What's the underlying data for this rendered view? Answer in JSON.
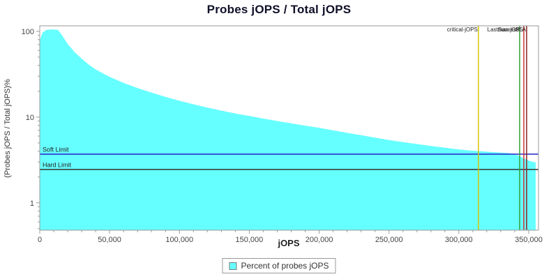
{
  "title": "Probes jOPS / Total jOPS",
  "colors": {
    "area": "#66FFFF",
    "soft_limit": "#2222CC",
    "hard_limit": "#303030",
    "axis": "#9a9a9a",
    "tick_text": "#444444",
    "annotation_text": "#222222",
    "title": "#10102a"
  },
  "legend": {
    "label": "Percent of probes jOPS"
  },
  "chart_data": {
    "type": "area",
    "title": "Probes jOPS / Total jOPS",
    "xlabel": "jOPS",
    "ylabel": "(Probes jOPS / Total jOPS)%",
    "yscale": "log",
    "xlim": [
      0,
      357000
    ],
    "ylim": [
      0.48,
      116
    ],
    "x_major_ticks": [
      0,
      50000,
      100000,
      150000,
      200000,
      250000,
      300000,
      350000
    ],
    "x_tick_labels": [
      "0",
      "50,000",
      "100,000",
      "150,000",
      "200,000",
      "250,000",
      "300,000",
      "350,000"
    ],
    "x_minor_step": 10000,
    "y_major_ticks": [
      1,
      10,
      100
    ],
    "y_tick_labels": [
      "1",
      "10",
      "100"
    ],
    "grid": false,
    "legend_position": "bottom",
    "legend_entries": [
      "Percent of probes jOPS"
    ],
    "series": [
      {
        "name": "Percent of probes jOPS",
        "points": [
          [
            0,
            78
          ],
          [
            2000,
            97
          ],
          [
            5000,
            104
          ],
          [
            9000,
            105
          ],
          [
            13000,
            104
          ],
          [
            16000,
            90
          ],
          [
            20000,
            71
          ],
          [
            25000,
            57
          ],
          [
            30000,
            48
          ],
          [
            35000,
            41
          ],
          [
            40000,
            36
          ],
          [
            45000,
            32.5
          ],
          [
            50000,
            29.5
          ],
          [
            60000,
            25
          ],
          [
            70000,
            21.8
          ],
          [
            80000,
            19.3
          ],
          [
            90000,
            17.2
          ],
          [
            100000,
            15.5
          ],
          [
            110000,
            14.1
          ],
          [
            120000,
            12.9
          ],
          [
            130000,
            11.9
          ],
          [
            140000,
            11.0
          ],
          [
            150000,
            10.3
          ],
          [
            160000,
            9.6
          ],
          [
            170000,
            9.0
          ],
          [
            180000,
            8.45
          ],
          [
            190000,
            7.95
          ],
          [
            200000,
            7.5
          ],
          [
            210000,
            7.0
          ],
          [
            220000,
            6.55
          ],
          [
            230000,
            6.15
          ],
          [
            240000,
            5.75
          ],
          [
            250000,
            5.4
          ],
          [
            260000,
            5.1
          ],
          [
            270000,
            4.85
          ],
          [
            280000,
            4.6
          ],
          [
            290000,
            4.4
          ],
          [
            300000,
            4.2
          ],
          [
            310000,
            4.05
          ],
          [
            320000,
            3.95
          ],
          [
            330000,
            3.85
          ],
          [
            336000,
            3.8
          ],
          [
            341000,
            3.65
          ],
          [
            345000,
            3.4
          ],
          [
            350000,
            3.1
          ],
          [
            355000,
            2.95
          ]
        ]
      }
    ],
    "limit_lines": [
      {
        "label": "Soft Limit",
        "y": 3.7,
        "color": "#2222CC"
      },
      {
        "label": "Hard Limit",
        "y": 2.45,
        "color": "#303030"
      }
    ],
    "markers": [
      {
        "label": "critical-jOPS",
        "x": 314000,
        "color": "#D4C400"
      },
      {
        "label": "LastSuccess",
        "x": 343500,
        "color": "#33A033"
      },
      {
        "label": "max-jOPS",
        "x": 346500,
        "color": "#CC3333"
      },
      {
        "label": "SLA",
        "x": 348500,
        "color": "#882222"
      }
    ]
  }
}
